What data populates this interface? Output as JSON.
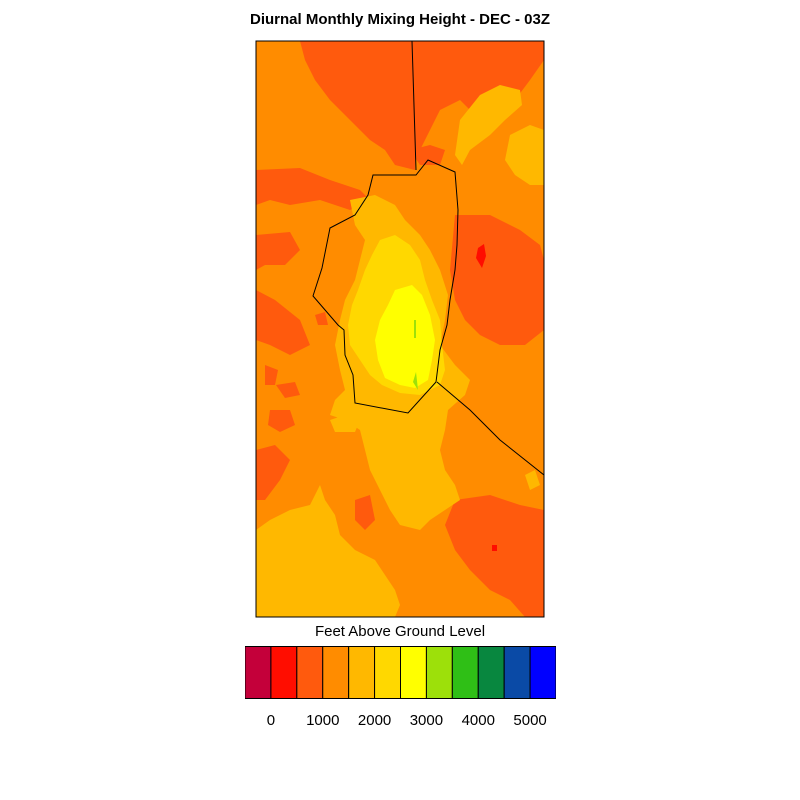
{
  "title": "Diurnal Monthly Mixing Height - DEC - 03Z",
  "legend": {
    "title": "Feet Above Ground Level",
    "colors": [
      "#c4003a",
      "#ff0d00",
      "#ff5a0d",
      "#ff8c00",
      "#ffb800",
      "#ffd800",
      "#ffff00",
      "#9de00a",
      "#2fbf16",
      "#08873f",
      "#0a4aa6",
      "#0000ff"
    ],
    "tick_labels": [
      "0",
      "1000",
      "2000",
      "3000",
      "4000",
      "5000"
    ]
  },
  "map": {
    "field_colors": {
      "base": "#ff8c00",
      "low": "#ff5a0d",
      "lowest": "#ff0d00",
      "mid": "#ffb800",
      "mid_high": "#ffd800",
      "high": "#ffff00",
      "peak": "#9de00a"
    }
  }
}
